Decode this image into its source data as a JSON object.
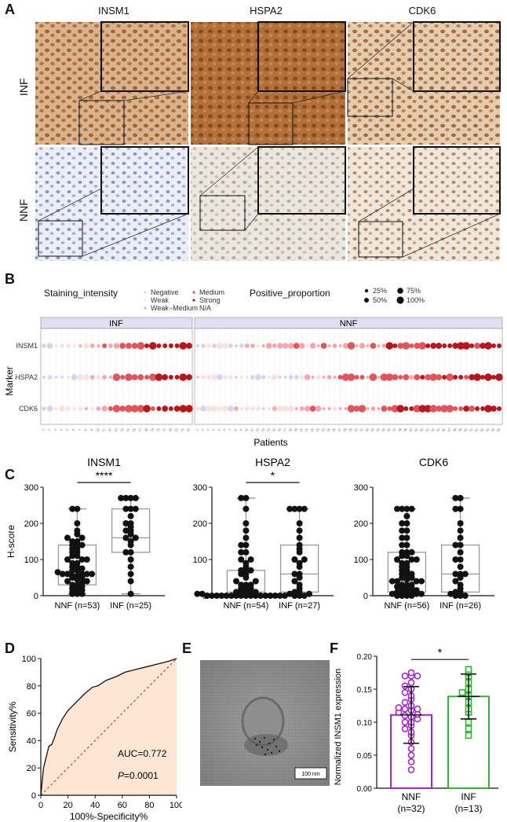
{
  "panels": {
    "A": "A",
    "B": "B",
    "C": "C",
    "D": "D",
    "E": "E",
    "F": "F"
  },
  "panelA": {
    "columns": [
      "INSM1",
      "HSPA2",
      "CDK6"
    ],
    "rows": [
      "INF",
      "NNF"
    ]
  },
  "panelB": {
    "legend_intensity_title": "Staining_intensity",
    "legend_intensity": [
      "Negative",
      "Weak",
      "Weak−Medium",
      "Medium",
      "Strong",
      "N/A"
    ],
    "legend_intensity_colors": [
      "#d6d3ec",
      "#fbe0e3",
      "#f3a7ae",
      "#e0545b",
      "#b5171c",
      "#ffffff"
    ],
    "legend_proportion_title": "Positive_proportion",
    "legend_proportion": [
      "25%",
      "50%",
      "75%",
      "100%"
    ],
    "facets": [
      "INF",
      "NNF"
    ],
    "markers": [
      "INSM1",
      "HSPA2",
      "CDK6"
    ],
    "ylabel": "Marker",
    "xlabel": "Patients"
  },
  "chart_data": [
    {
      "type": "box",
      "title": "INSM1",
      "ylabel": "H-score",
      "categories": [
        "NNF (n=53)",
        "INF (n=25)"
      ],
      "ylim": [
        0,
        300
      ],
      "yticks": [
        0,
        100,
        200,
        300
      ],
      "significance": "****",
      "boxes": [
        {
          "min": 5,
          "q1": 30,
          "median": 60,
          "q3": 140,
          "max": 240
        },
        {
          "min": 5,
          "q1": 120,
          "median": 160,
          "q3": 240,
          "max": 270
        }
      ],
      "points": [
        [
          5,
          5,
          5,
          10,
          10,
          15,
          20,
          20,
          25,
          30,
          30,
          35,
          40,
          40,
          45,
          50,
          50,
          55,
          55,
          60,
          60,
          60,
          60,
          60,
          65,
          70,
          70,
          75,
          80,
          80,
          90,
          90,
          100,
          100,
          100,
          110,
          110,
          120,
          120,
          130,
          130,
          140,
          140,
          140,
          150,
          150,
          160,
          160,
          170,
          180,
          200,
          240,
          240
        ],
        [
          5,
          40,
          60,
          80,
          100,
          120,
          120,
          140,
          150,
          160,
          160,
          170,
          180,
          180,
          190,
          200,
          200,
          220,
          240,
          240,
          240,
          270,
          270,
          270,
          270
        ]
      ]
    },
    {
      "type": "box",
      "title": "HSPA2",
      "categories": [
        "NNF (n=54)",
        "INF (n=27)"
      ],
      "ylim": [
        0,
        300
      ],
      "yticks": [
        0,
        100,
        200,
        300
      ],
      "significance": "*",
      "boxes": [
        {
          "min": 0,
          "q1": 0,
          "median": 10,
          "q3": 70,
          "max": 270
        },
        {
          "min": 0,
          "q1": 10,
          "median": 60,
          "q3": 140,
          "max": 240
        }
      ],
      "points": [
        [
          0,
          0,
          0,
          0,
          0,
          0,
          0,
          0,
          0,
          0,
          0,
          0,
          0,
          0,
          0,
          0,
          0,
          5,
          5,
          5,
          5,
          10,
          10,
          10,
          10,
          10,
          20,
          20,
          20,
          30,
          30,
          30,
          40,
          40,
          50,
          60,
          60,
          70,
          70,
          70,
          80,
          90,
          100,
          100,
          120,
          120,
          140,
          140,
          160,
          180,
          200,
          240,
          270,
          270
        ],
        [
          0,
          0,
          0,
          5,
          5,
          10,
          10,
          20,
          30,
          40,
          50,
          60,
          60,
          80,
          90,
          100,
          100,
          120,
          130,
          140,
          160,
          180,
          200,
          240,
          240,
          240,
          240
        ]
      ]
    },
    {
      "type": "box",
      "title": "CDK6",
      "categories": [
        "NNF (n=56)",
        "INF (n=26)"
      ],
      "ylim": [
        0,
        300
      ],
      "yticks": [
        0,
        100,
        200,
        300
      ],
      "boxes": [
        {
          "min": 0,
          "q1": 10,
          "median": 40,
          "q3": 120,
          "max": 240
        },
        {
          "min": 0,
          "q1": 10,
          "median": 60,
          "q3": 140,
          "max": 270
        }
      ],
      "points": [
        [
          0,
          0,
          0,
          0,
          5,
          5,
          5,
          10,
          10,
          10,
          10,
          15,
          20,
          20,
          20,
          25,
          30,
          30,
          30,
          40,
          40,
          40,
          40,
          45,
          50,
          50,
          60,
          60,
          60,
          70,
          70,
          80,
          80,
          90,
          90,
          100,
          100,
          100,
          110,
          110,
          120,
          120,
          120,
          140,
          140,
          160,
          160,
          180,
          180,
          200,
          200,
          220,
          240,
          240,
          240,
          240
        ],
        [
          0,
          0,
          0,
          5,
          10,
          10,
          20,
          30,
          40,
          50,
          60,
          60,
          60,
          80,
          100,
          100,
          120,
          140,
          140,
          160,
          180,
          200,
          240,
          240,
          270,
          270
        ]
      ]
    },
    {
      "type": "line",
      "title": "",
      "xlabel": "100%-Specificity%",
      "ylabel": "Sensitivity%",
      "xlim": [
        0,
        100
      ],
      "ylim": [
        0,
        100
      ],
      "xticks": [
        0,
        20,
        40,
        60,
        80,
        100
      ],
      "yticks": [
        0,
        20,
        40,
        60,
        80,
        100
      ],
      "x": [
        0,
        2,
        4,
        6,
        8,
        10,
        12,
        16,
        20,
        26,
        32,
        38,
        42,
        48,
        56,
        62,
        70,
        78,
        86,
        94,
        100
      ],
      "y": [
        0,
        20,
        28,
        36,
        37,
        42,
        48,
        56,
        62,
        68,
        74,
        79,
        80,
        84,
        87,
        90,
        92,
        94,
        96,
        98,
        100
      ],
      "reference_line": [
        [
          0,
          0
        ],
        [
          100,
          100
        ]
      ],
      "auc": "AUC=0.772",
      "p_italic": "P",
      "p_value": "=0.0001"
    },
    {
      "type": "bar",
      "title": "",
      "ylabel": "Normalized INSM1 expression",
      "categories": [
        "NNF\n(n=32)",
        "INF\n(n=13)"
      ],
      "category_lines": [
        [
          "NNF",
          "(n=32)"
        ],
        [
          "INF",
          "(n=13)"
        ]
      ],
      "values": [
        0.111,
        0.139
      ],
      "errors": [
        0.043,
        0.034
      ],
      "ylim": [
        0,
        0.2
      ],
      "yticks": [
        0.0,
        0.05,
        0.1,
        0.15,
        0.2
      ],
      "significance": "*",
      "colors": [
        "#a227c9",
        "#35b335"
      ],
      "points": [
        [
          0.028,
          0.04,
          0.05,
          0.06,
          0.07,
          0.08,
          0.085,
          0.09,
          0.095,
          0.1,
          0.1,
          0.105,
          0.108,
          0.11,
          0.112,
          0.115,
          0.118,
          0.12,
          0.12,
          0.122,
          0.125,
          0.13,
          0.135,
          0.14,
          0.145,
          0.15,
          0.155,
          0.16,
          0.17,
          0.17,
          0.17,
          0.175
        ],
        [
          0.08,
          0.09,
          0.1,
          0.115,
          0.12,
          0.13,
          0.14,
          0.145,
          0.15,
          0.16,
          0.17,
          0.175,
          0.18
        ]
      ]
    }
  ],
  "panelE": {
    "scale_label": "100 nm"
  }
}
